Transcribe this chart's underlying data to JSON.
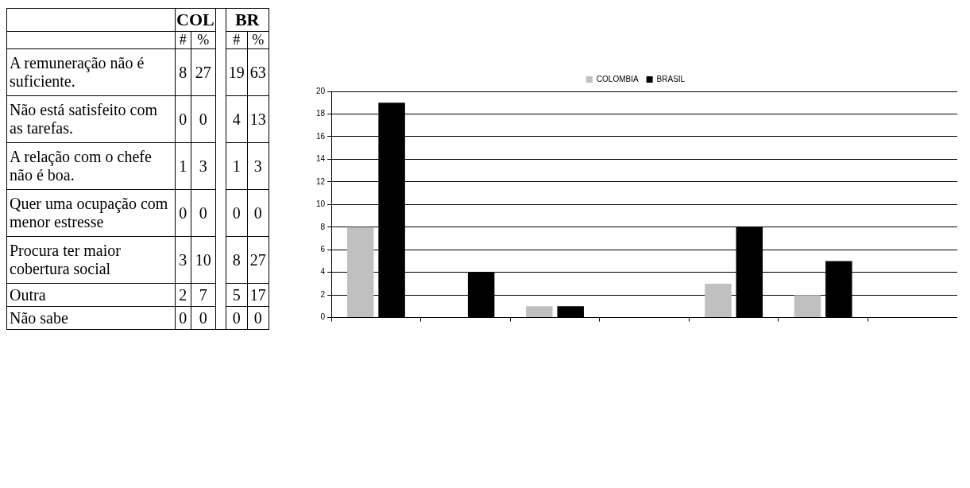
{
  "chart_data": [
    {
      "type": "other",
      "annotations": [
        "COL",
        "BR"
      ],
      "data_labels": true,
      "categories": [
        "A remuneração não é suficiente.",
        "Não está satisfeito com as tarefas.",
        "A relação com o chefe não é boa.",
        "Quer uma ocupação com menor estresse",
        "Procura ter maior cobertura social",
        "Outra",
        "Não sabe"
      ],
      "series": [
        {
          "name": "#",
          "values": [
            8,
            0,
            1,
            0,
            3,
            2,
            0
          ]
        },
        {
          "name": "%",
          "values": [
            27,
            0,
            3,
            0,
            10,
            7,
            0
          ]
        },
        {
          "name": "#",
          "values": [
            19,
            4,
            1,
            0,
            8,
            5,
            0
          ]
        },
        {
          "name": "%",
          "values": [
            63,
            13,
            3,
            0,
            27,
            17,
            0
          ]
        }
      ]
    },
    {
      "type": "bar",
      "categories": [
        null,
        null,
        null,
        null,
        null,
        null,
        null
      ],
      "series": [
        {
          "name": "COLOMBIA",
          "color": "#c0c0c0",
          "values": [
            8,
            0,
            1,
            0,
            3,
            2,
            0
          ]
        },
        {
          "name": "BRASIL",
          "color": "#000000",
          "values": [
            19,
            4,
            1,
            0,
            8,
            5,
            0
          ]
        }
      ],
      "ylim": [
        0,
        20
      ],
      "yticks": [
        0,
        2,
        4,
        6,
        8,
        10,
        12,
        14,
        16,
        18,
        20
      ],
      "grid": "y",
      "legend": "top"
    }
  ]
}
